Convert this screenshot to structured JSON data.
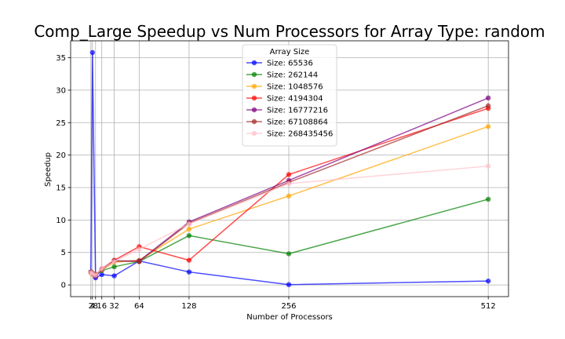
{
  "chart_data": {
    "type": "line",
    "title": "Comp_Large Speedup vs Num Processors for Array Type: random",
    "xlabel": "Number of Processors",
    "ylabel": "Speedup",
    "xlim": [
      -24,
      538
    ],
    "ylim": [
      -1.8,
      37.6
    ],
    "xticks": [
      2,
      4,
      8,
      16,
      32,
      64,
      128,
      256,
      512
    ],
    "yticks": [
      0,
      5,
      10,
      15,
      20,
      25,
      30,
      35
    ],
    "grid": true,
    "legend": {
      "title": "Array Size",
      "placement": "upper-center"
    },
    "series": [
      {
        "name": "Size: 65536",
        "color": "#0000ff",
        "x": [
          2,
          4,
          8,
          16,
          32,
          64,
          128,
          256,
          512
        ],
        "y": [
          1.9,
          35.8,
          1.1,
          1.6,
          1.4,
          3.7,
          2.0,
          0.05,
          0.6
        ]
      },
      {
        "name": "Size: 262144",
        "color": "#008000",
        "x": [
          2,
          4,
          8,
          16,
          32,
          64,
          128,
          256,
          512
        ],
        "y": [
          2.0,
          1.7,
          1.5,
          2.2,
          2.8,
          3.6,
          7.6,
          4.8,
          13.2
        ]
      },
      {
        "name": "Size: 1048576",
        "color": "#ffa500",
        "x": [
          2,
          4,
          8,
          16,
          32,
          64,
          128,
          256,
          512
        ],
        "y": [
          1.9,
          1.6,
          1.6,
          2.3,
          3.5,
          3.8,
          8.6,
          13.7,
          24.4
        ]
      },
      {
        "name": "Size: 4194304",
        "color": "#ff0000",
        "x": [
          2,
          4,
          8,
          16,
          32,
          64,
          128,
          256,
          512
        ],
        "y": [
          1.9,
          1.8,
          1.5,
          2.5,
          3.8,
          5.9,
          3.8,
          17.0,
          27.2
        ]
      },
      {
        "name": "Size: 16777216",
        "color": "#800080",
        "x": [
          2,
          4,
          8,
          16,
          32,
          64,
          128,
          256,
          512
        ],
        "y": [
          2.0,
          1.7,
          1.3,
          2.4,
          3.7,
          3.7,
          9.7,
          16.1,
          28.8
        ]
      },
      {
        "name": "Size: 67108864",
        "color": "#a52a2a",
        "x": [
          2,
          4,
          8,
          16,
          32,
          64,
          128,
          256,
          512
        ],
        "y": [
          2.0,
          1.8,
          1.6,
          2.4,
          3.7,
          3.6,
          9.5,
          15.8,
          27.6
        ]
      },
      {
        "name": "Size: 268435456",
        "color": "#ffc0cb",
        "x": [
          2,
          4,
          8,
          16,
          32,
          64,
          128,
          256,
          512
        ],
        "y": [
          1.9,
          1.7,
          1.5,
          2.5,
          3.6,
          5.5,
          9.4,
          15.6,
          18.3
        ]
      }
    ]
  }
}
